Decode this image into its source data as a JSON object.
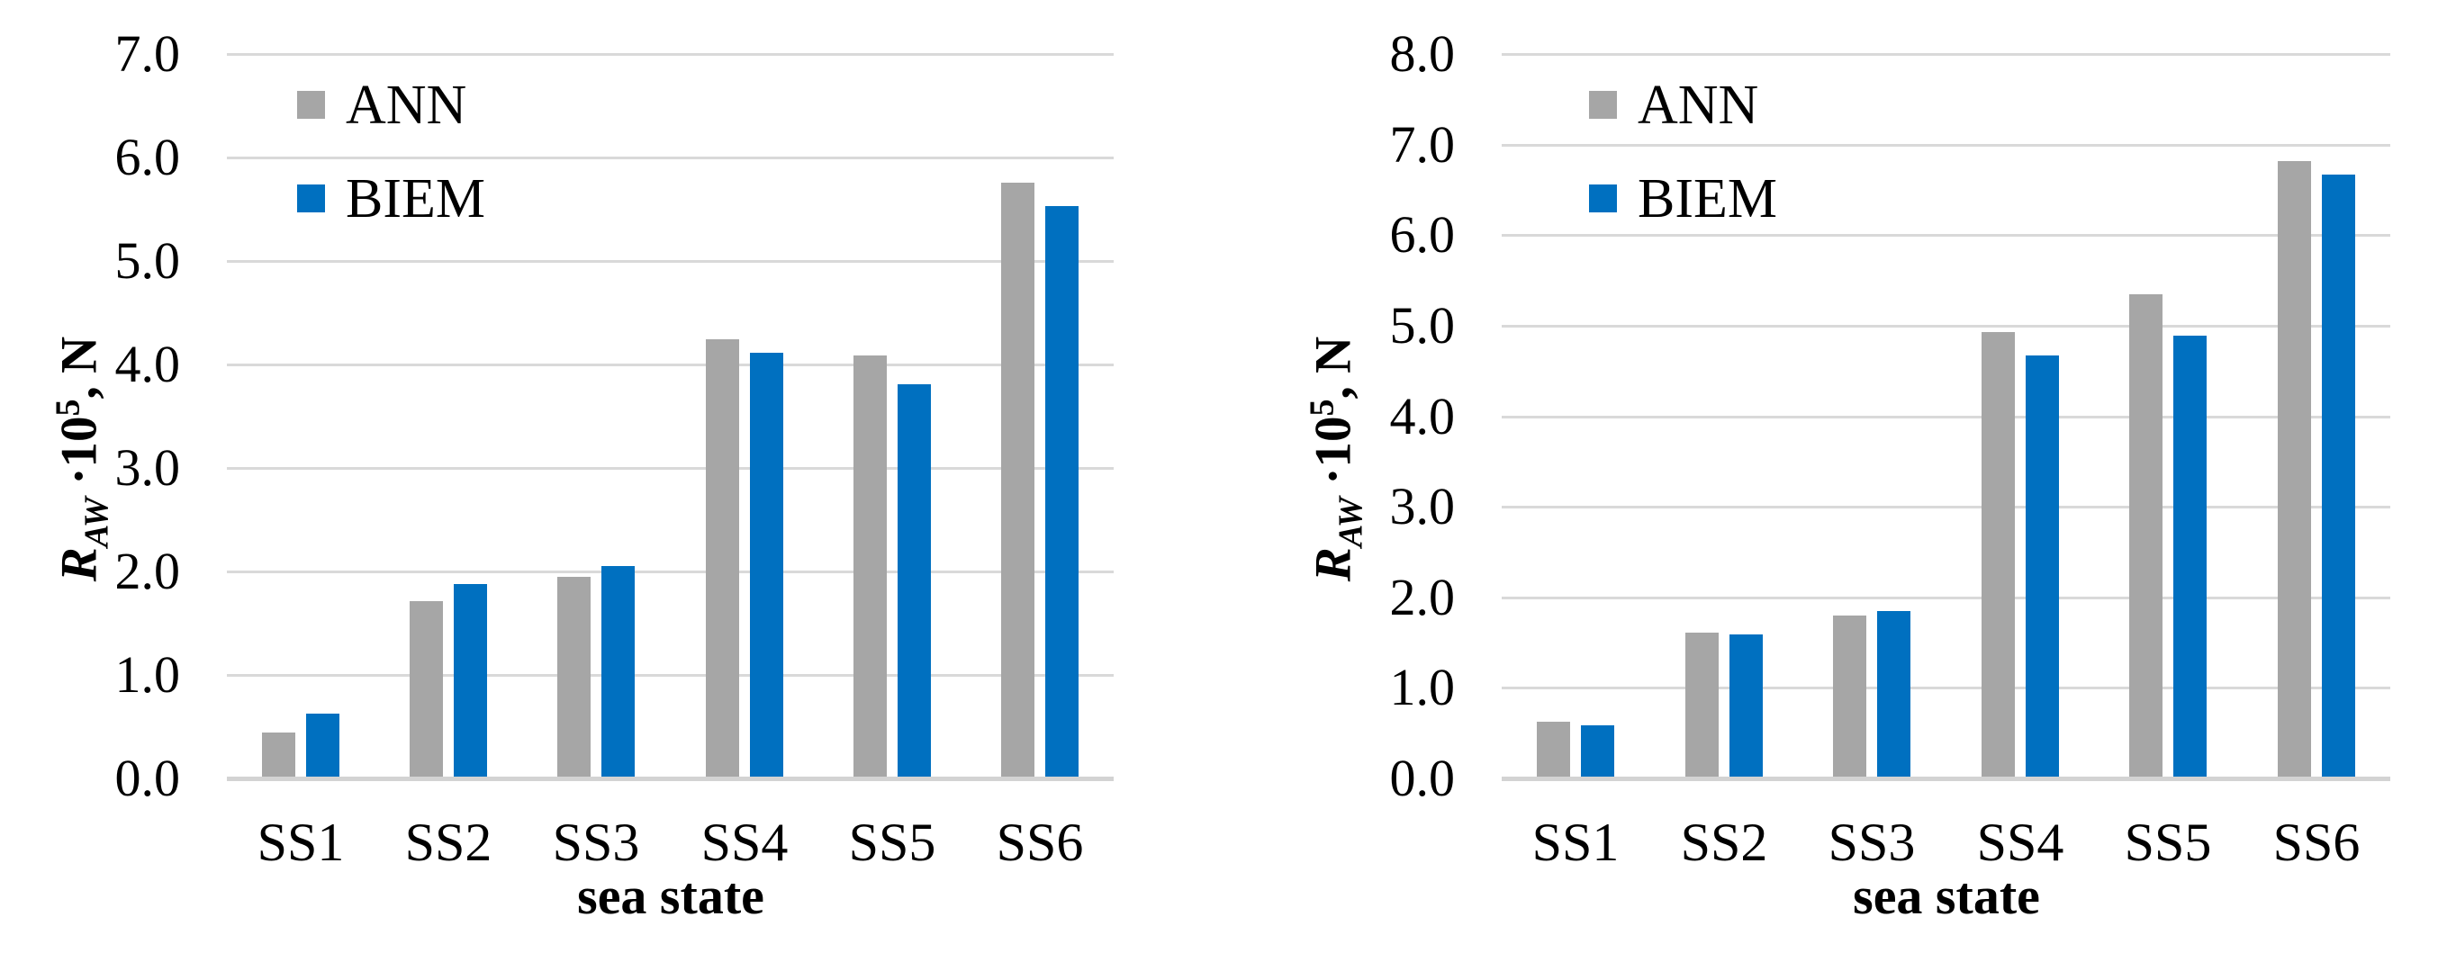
{
  "figure": {
    "background": "#FFFFFF",
    "text_color": "#000000",
    "gridline_color": "#D9D9D9",
    "axis_line_color": "#D3D3D3"
  },
  "chart_data": [
    {
      "type": "bar",
      "title": "",
      "xlabel": "sea state",
      "ylabel": "R_AW ·10^5, N",
      "ylabel_parts": {
        "symbol": "R",
        "subscript": "AW",
        "multiplier": "·10",
        "exponent": "5",
        "unit": ", N"
      },
      "categories": [
        "SS1",
        "SS2",
        "SS3",
        "SS4",
        "SS5",
        "SS6"
      ],
      "series": [
        {
          "name": "ANN",
          "color": "#A6A6A6",
          "values": [
            0.44,
            1.71,
            1.95,
            4.24,
            4.09,
            5.76
          ]
        },
        {
          "name": "BIEM",
          "color": "#0070C0",
          "values": [
            0.63,
            1.88,
            2.05,
            4.11,
            3.81,
            5.53
          ]
        }
      ],
      "ylim": [
        0,
        7
      ],
      "ytick_step": 1.0,
      "ytick_labels": [
        "0.0",
        "1.0",
        "2.0",
        "3.0",
        "4.0",
        "5.0",
        "6.0",
        "7.0"
      ],
      "grid": "horizontal",
      "legend_position": "upper-left-inside"
    },
    {
      "type": "bar",
      "title": "",
      "xlabel": "sea state",
      "ylabel": "R_AW ·10^5, N",
      "ylabel_parts": {
        "symbol": "R",
        "subscript": "AW",
        "multiplier": "·10",
        "exponent": "5",
        "unit": ", N"
      },
      "categories": [
        "SS1",
        "SS2",
        "SS3",
        "SS4",
        "SS5",
        "SS6"
      ],
      "series": [
        {
          "name": "ANN",
          "color": "#A6A6A6",
          "values": [
            0.63,
            1.61,
            1.8,
            4.93,
            5.35,
            6.82
          ]
        },
        {
          "name": "BIEM",
          "color": "#0070C0",
          "values": [
            0.59,
            1.59,
            1.85,
            4.67,
            4.89,
            6.67
          ]
        }
      ],
      "ylim": [
        0,
        8
      ],
      "ytick_step": 1.0,
      "ytick_labels": [
        "0.0",
        "1.0",
        "2.0",
        "3.0",
        "4.0",
        "5.0",
        "6.0",
        "7.0",
        "8.0"
      ],
      "grid": "horizontal",
      "legend_position": "upper-left-inside"
    }
  ]
}
